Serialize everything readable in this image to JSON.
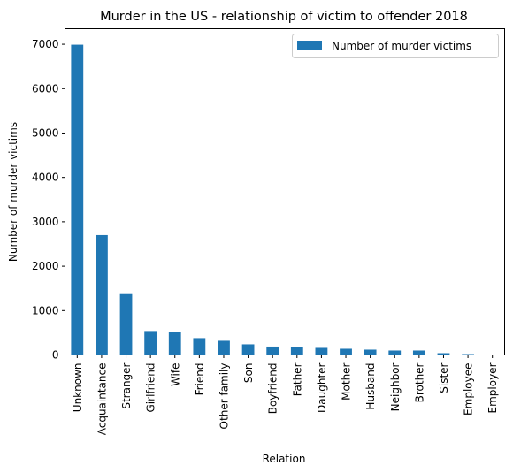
{
  "chart_data": {
    "type": "bar",
    "title": "Murder in the US - relationship of victim to offender 2018",
    "xlabel": "Relation",
    "ylabel": "Number of murder victims",
    "ylim": [
      0,
      7350
    ],
    "yticks": [
      0,
      1000,
      2000,
      3000,
      4000,
      5000,
      6000,
      7000
    ],
    "grid": false,
    "legend": {
      "placement": "top-right",
      "entries": [
        "Number of murder victims"
      ]
    },
    "categories": [
      "Unknown",
      "Acquaintance",
      "Stranger",
      "Girlfriend",
      "Wife",
      "Friend",
      "Other family",
      "Son",
      "Boyfriend",
      "Father",
      "Daughter",
      "Mother",
      "Husband",
      "Neighbor",
      "Brother",
      "Sister",
      "Employee",
      "Employer"
    ],
    "series": [
      {
        "name": "Number of murder victims",
        "color": "#1f77b4",
        "values": [
          6990,
          2700,
          1390,
          540,
          510,
          380,
          320,
          240,
          190,
          180,
          160,
          140,
          120,
          100,
          100,
          40,
          20,
          5
        ]
      }
    ]
  }
}
